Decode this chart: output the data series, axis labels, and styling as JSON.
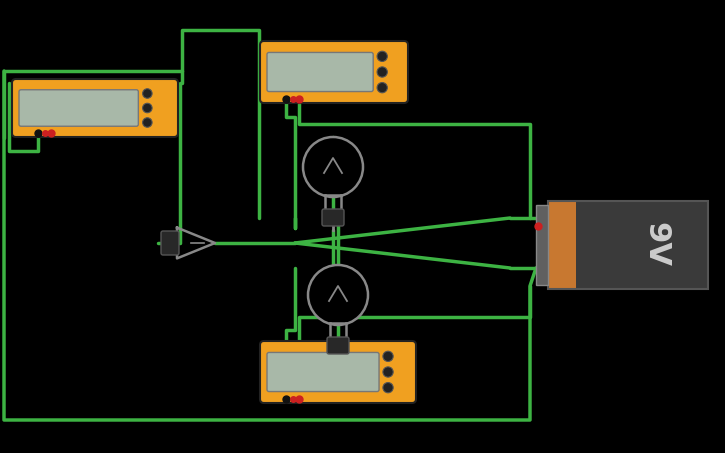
{
  "bg": "#000000",
  "wc": "#3db343",
  "wlw": 2.5,
  "meter_orange": "#f0a020",
  "meter_screen": "#a8b8a8",
  "batt_dark": "#3a3a3a",
  "batt_orange": "#c87830",
  "batt_clip": "#606060",
  "batt_text": "9V",
  "batt_text_color": "#cccccc",
  "bulb_outline": "#888888",
  "bulb_fill": "#000000",
  "bulb_base": "#282828",
  "red_dot": "#cc2020",
  "black_dot": "#111111",
  "btn_color": "#222222",
  "btn_edge": "#555555",
  "figw": 7.25,
  "figh": 4.53,
  "dpi": 100
}
